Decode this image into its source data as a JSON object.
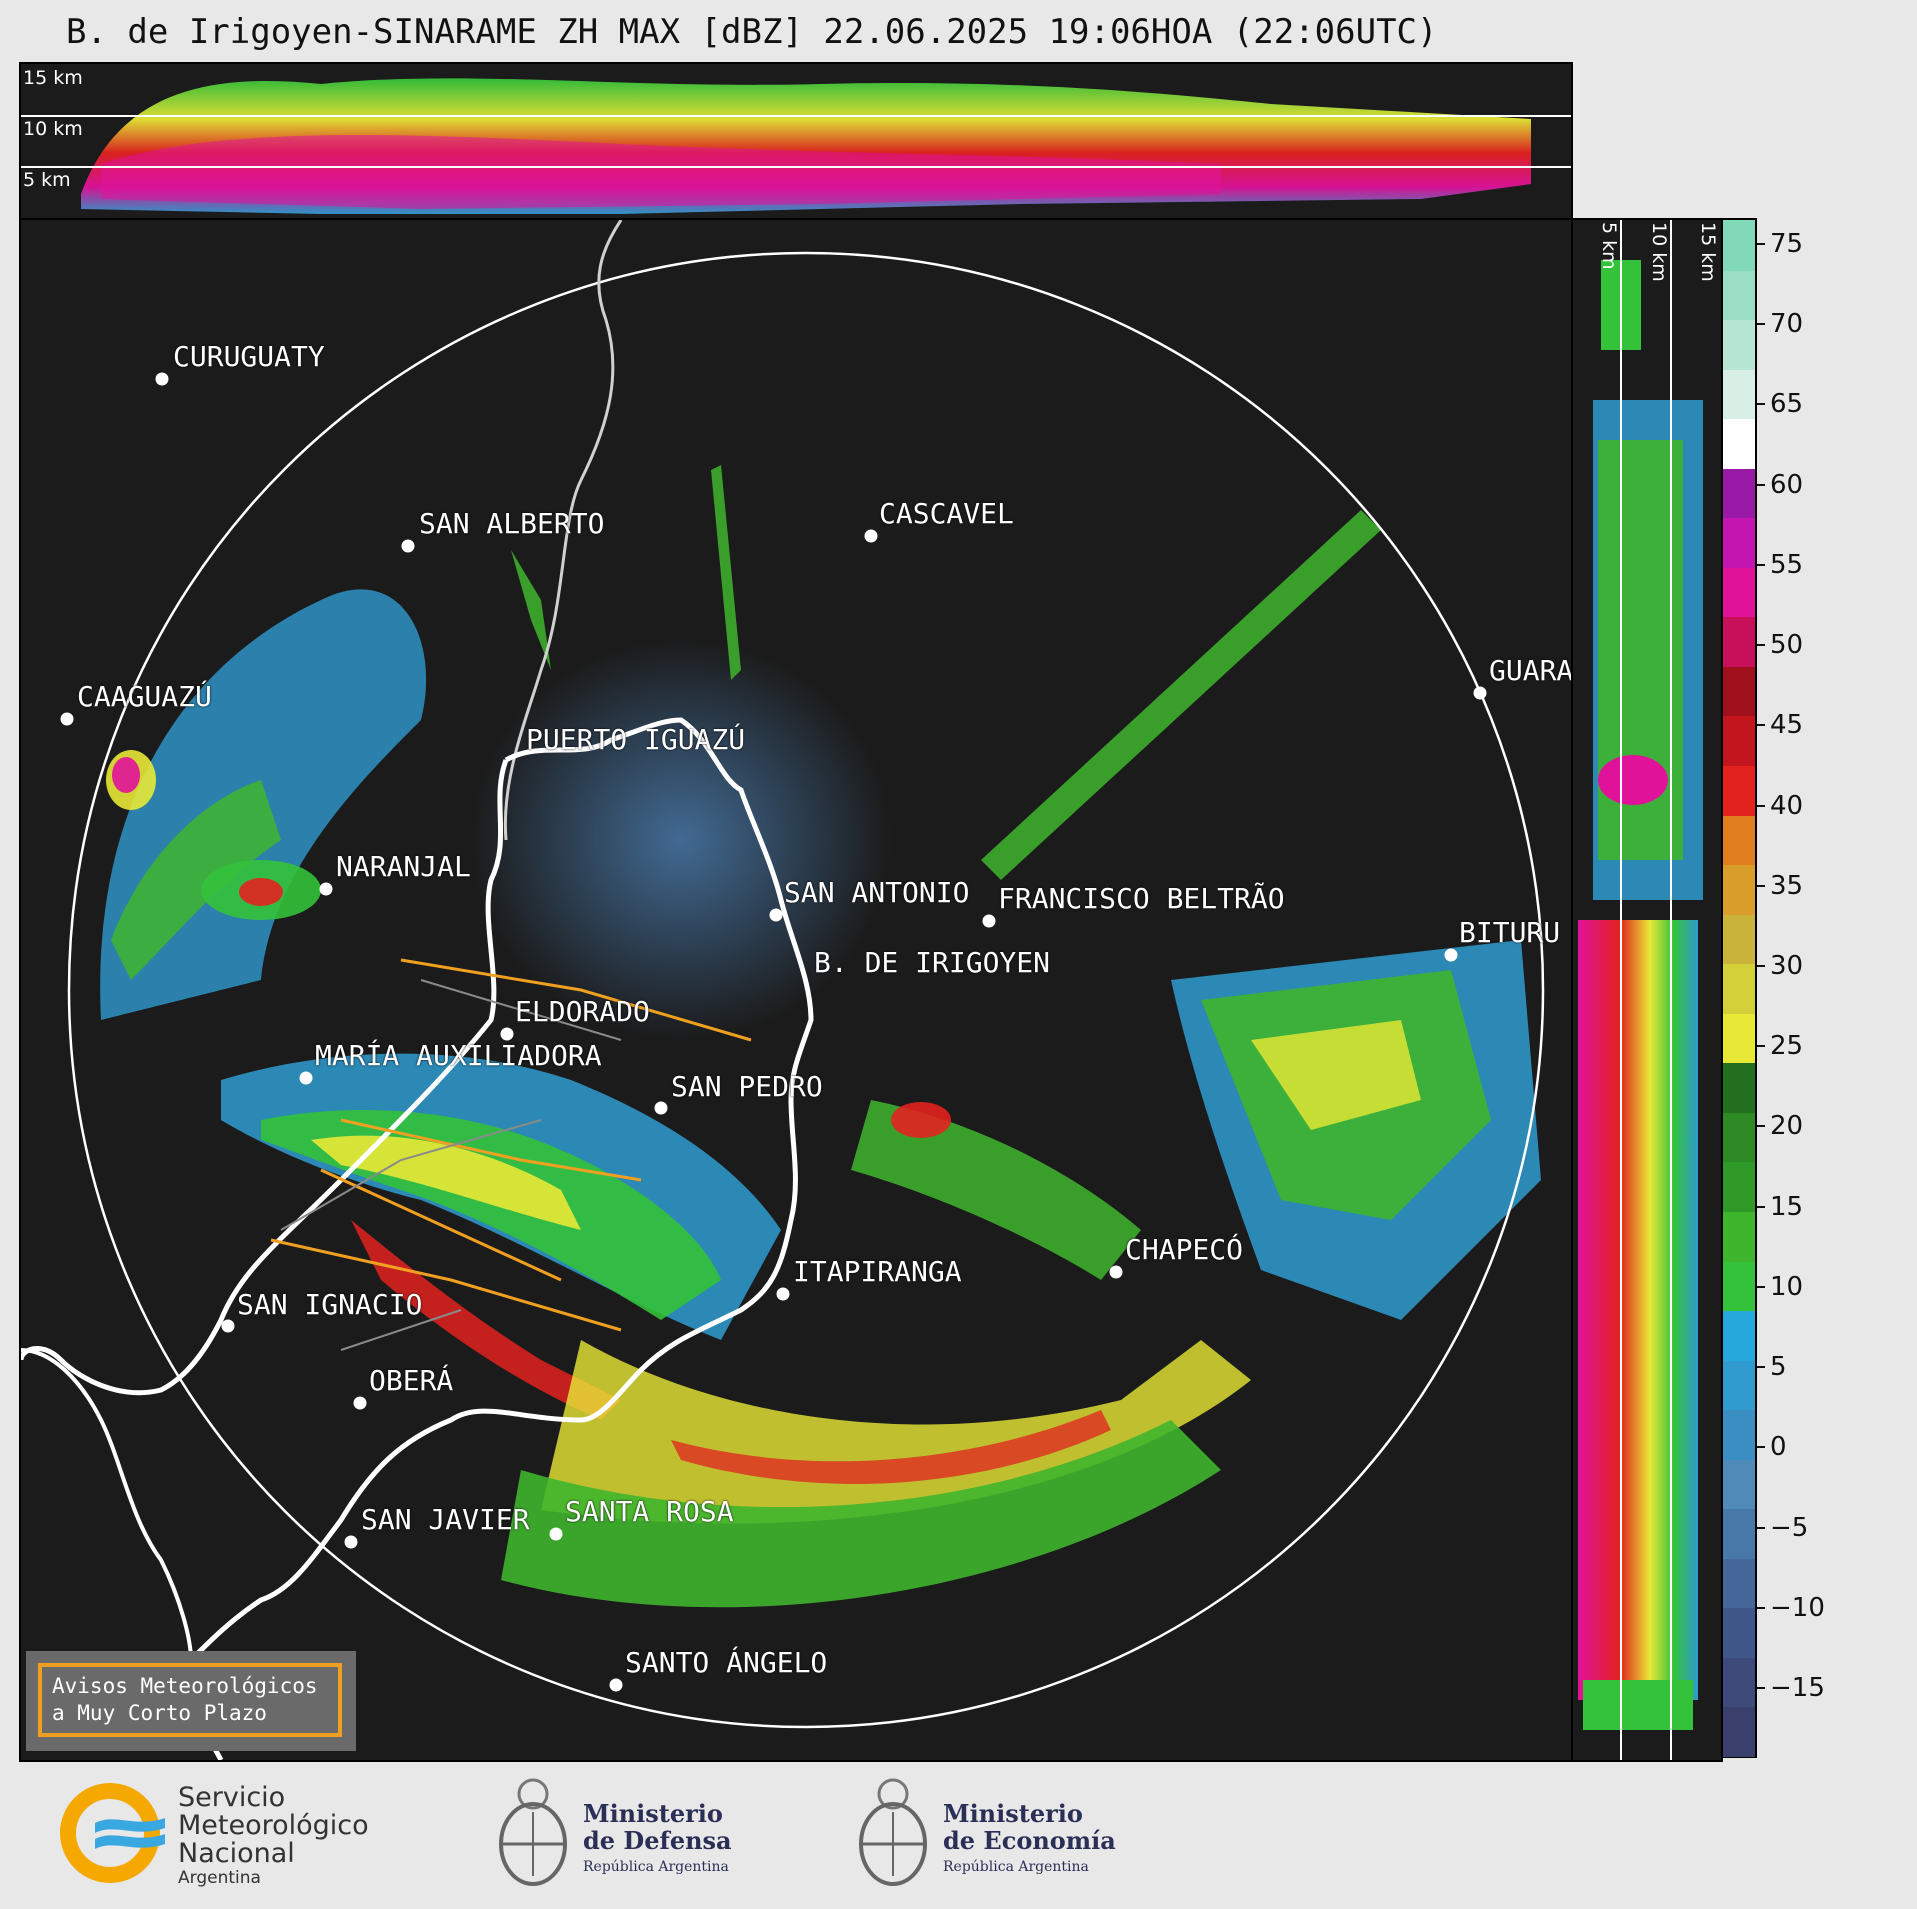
{
  "title": "B. de Irigoyen-SINARAME ZH MAX [dBZ] 22.06.2025 19:06HOA (22:06UTC)",
  "top_panel": {
    "km_labels": [
      "15 km",
      "10 km",
      "5 km"
    ]
  },
  "side_panel": {
    "km_labels": [
      "5 km",
      "10 km",
      "15 km"
    ]
  },
  "colorbar": {
    "ticks": [
      "75",
      "70",
      "65",
      "60",
      "55",
      "50",
      "45",
      "40",
      "35",
      "30",
      "25",
      "20",
      "15",
      "10",
      "5",
      "0",
      "−5",
      "−10",
      "−15"
    ],
    "colors": [
      "#3a3f6b",
      "#3d4a7a",
      "#40578a",
      "#446699",
      "#4878a8",
      "#4f8ab8",
      "#3a8ec2",
      "#2f9bcf",
      "#27a8dc",
      "#33c23a",
      "#3fb52e",
      "#2f9a28",
      "#2e8a25",
      "#226f1f",
      "#e8e836",
      "#d4d03a",
      "#c9b33a",
      "#d89d2a",
      "#e07d1f",
      "#e2221f",
      "#c2151e",
      "#a0101c",
      "#c80f5a",
      "#e0129a",
      "#c415b0",
      "#9a1aa8",
      "#ffffff",
      "#d8efe6",
      "#b7e6d2",
      "#9adfc4",
      "#82d9b8"
    ],
    "colors_note": ""
  },
  "cities": [
    {
      "name": "CURUGUATY"
    },
    {
      "name": "SAN ALBERTO"
    },
    {
      "name": "CASCAVEL"
    },
    {
      "name": "CAAGUAZÚ"
    },
    {
      "name": "GUARA"
    },
    {
      "name": "PUERTO IGUAZÚ"
    },
    {
      "name": "NARANJAL"
    },
    {
      "name": "SAN ANTONIO"
    },
    {
      "name": "FRANCISCO BELTRÃO"
    },
    {
      "name": "BITURU"
    },
    {
      "name": "B. DE IRIGOYEN"
    },
    {
      "name": "ELDORADO"
    },
    {
      "name": "MARÍA AUXILIADORA"
    },
    {
      "name": "SAN PEDRO"
    },
    {
      "name": "CHAPECÓ"
    },
    {
      "name": "ITAPIRANGA"
    },
    {
      "name": "SAN IGNACIO"
    },
    {
      "name": "OBERÁ"
    },
    {
      "name": "SAN JAVIER"
    },
    {
      "name": "SANTA ROSA"
    },
    {
      "name": "SANTO ÁNGELO"
    }
  ],
  "legend": {
    "line1": "Avisos Meteorológicos",
    "line2": "a Muy Corto Plazo"
  },
  "logos": {
    "smn": [
      "Servicio",
      "Meteorológico",
      "Nacional",
      "Argentina"
    ],
    "defensa": [
      "Ministerio",
      "de Defensa",
      "República Argentina"
    ],
    "economia": [
      "Ministerio",
      "de Economía",
      "República Argentina"
    ]
  }
}
